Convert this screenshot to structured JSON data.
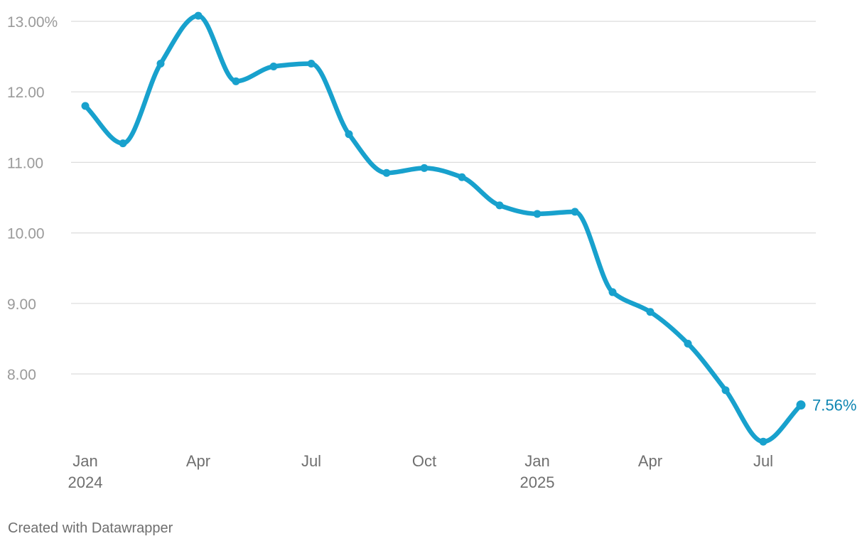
{
  "chart_data": {
    "type": "line",
    "x": [
      "2024-01",
      "2024-02",
      "2024-03",
      "2024-04",
      "2024-05",
      "2024-06",
      "2024-07",
      "2024-08",
      "2024-09",
      "2024-10",
      "2024-11",
      "2024-12",
      "2025-01",
      "2025-02",
      "2025-03",
      "2025-04",
      "2025-05",
      "2025-06",
      "2025-07",
      "2025-08"
    ],
    "series": [
      {
        "values": [
          11.8,
          11.27,
          12.4,
          13.08,
          12.15,
          12.36,
          12.4,
          11.4,
          10.85,
          10.92,
          10.79,
          10.39,
          10.27,
          10.3,
          9.16,
          8.88,
          8.43,
          7.77,
          7.04,
          7.56
        ],
        "color": "#18a1cd"
      }
    ],
    "ylim": [
      7.0,
      13.0
    ],
    "yticks": [
      "13.00%",
      "12.00",
      "11.00",
      "10.00",
      "9.00",
      "8.00"
    ],
    "xticks": [
      {
        "label": "Jan",
        "sublabel": "2024"
      },
      {
        "label": "Apr",
        "sublabel": ""
      },
      {
        "label": "Jul",
        "sublabel": ""
      },
      {
        "label": "Oct",
        "sublabel": ""
      },
      {
        "label": "Jan",
        "sublabel": "2025"
      },
      {
        "label": "Apr",
        "sublabel": ""
      },
      {
        "label": "Jul",
        "sublabel": ""
      }
    ],
    "end_label": "7.56%",
    "title": "",
    "xlabel": "",
    "ylabel": "",
    "grid": true
  },
  "footer": {
    "credit": "Created with Datawrapper"
  },
  "colors": {
    "line": "#18a1cd",
    "end_label": "#0f86b2",
    "grid": "#dcdcdc"
  }
}
